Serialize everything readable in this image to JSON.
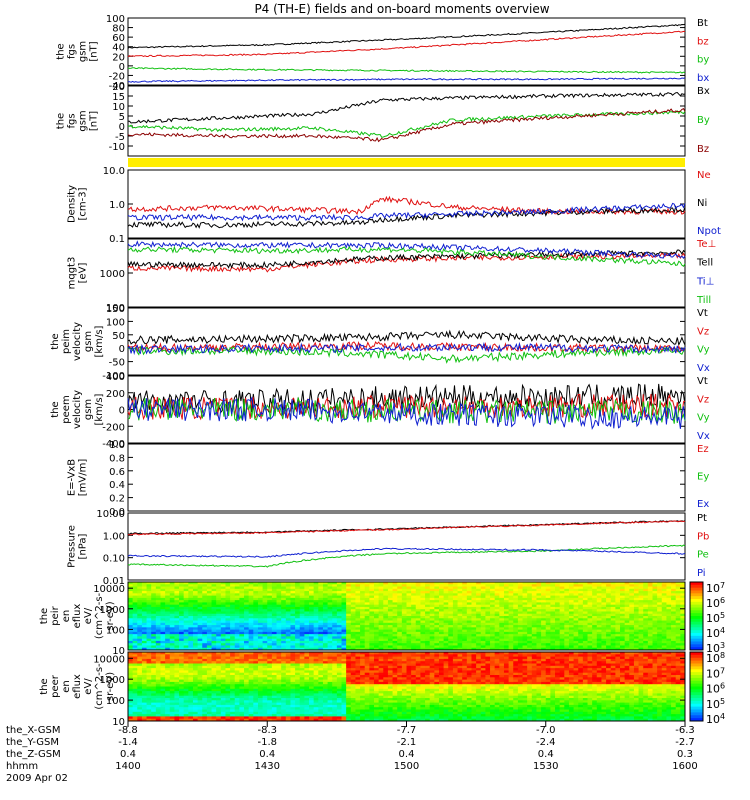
{
  "title": "P4 (TH-E) fields and on-board moments overview",
  "x_axis": {
    "row_labels": [
      "the_X-GSM",
      "the_Y-GSM",
      "the_Z-GSM",
      "hhmm",
      "2009 Apr 02"
    ],
    "ticks": [
      {
        "hhmm": "1400",
        "x": "-8.8",
        "y": "-1.4",
        "z": "0.4"
      },
      {
        "hhmm": "1430",
        "x": "-8.3",
        "y": "-1.8",
        "z": "0.4"
      },
      {
        "hhmm": "1500",
        "x": "-7.7",
        "y": "-2.1",
        "z": "0.4"
      },
      {
        "hhmm": "1530",
        "x": "-7.0",
        "y": "-2.4",
        "z": "0.4"
      },
      {
        "hhmm": "1600",
        "x": "-6.3",
        "y": "-2.7",
        "z": "0.3"
      }
    ]
  },
  "chart_data": [
    {
      "type": "line",
      "ylabel": [
        "the",
        "fgs",
        "gsm",
        "[nT]"
      ],
      "ylim": [
        -40,
        100
      ],
      "yticks": [
        "100",
        "80",
        "60",
        "40",
        "20",
        "0",
        "-20",
        "-40"
      ],
      "series": [
        {
          "name": "Bt",
          "color": "#000000",
          "x": [
            0,
            30,
            60,
            90,
            120
          ],
          "values": [
            38,
            44,
            56,
            70,
            86
          ]
        },
        {
          "name": "bz",
          "color": "#e01010",
          "x": [
            0,
            30,
            60,
            90,
            120
          ],
          "values": [
            20,
            24,
            38,
            55,
            72
          ]
        },
        {
          "name": "by",
          "color": "#10c010",
          "x": [
            0,
            30,
            60,
            90,
            120
          ],
          "values": [
            -5,
            -8,
            -10,
            -12,
            -14
          ]
        },
        {
          "name": "bx",
          "color": "#1020d0",
          "x": [
            0,
            30,
            60,
            90,
            120
          ],
          "values": [
            -33,
            -30,
            -28,
            -28,
            -26
          ]
        }
      ]
    },
    {
      "type": "line",
      "ylabel": [
        "the",
        "fgs",
        "gsm",
        "[nT]"
      ],
      "ylim": [
        -15,
        20
      ],
      "yticks": [
        "20",
        "15",
        "10",
        "5",
        "0",
        "-5",
        "-10"
      ],
      "series": [
        {
          "name": "Bx",
          "color": "#000000",
          "x": [
            0,
            20,
            40,
            55,
            70,
            90,
            120
          ],
          "values": [
            2,
            4,
            6,
            13,
            14,
            15,
            16
          ]
        },
        {
          "name": "By",
          "color": "#10c010",
          "x": [
            0,
            20,
            40,
            55,
            70,
            90,
            120
          ],
          "values": [
            0,
            -2,
            -1,
            -5,
            3,
            5,
            7
          ]
        },
        {
          "name": "Bz",
          "color": "#8b0000",
          "x": [
            0,
            20,
            40,
            55,
            70,
            90,
            120
          ],
          "values": [
            -4,
            -5,
            -5,
            -7,
            1,
            4,
            8
          ]
        }
      ]
    },
    {
      "type": "line",
      "ylabel": [
        "Density",
        "[cm-3]"
      ],
      "yscale": "log",
      "ylim": [
        0.1,
        10
      ],
      "yticks": [
        "10.0",
        "1.0",
        "0.1"
      ],
      "series": [
        {
          "name": "Ne",
          "color": "#e01010",
          "x": [
            0,
            20,
            50,
            55,
            70,
            90,
            120
          ],
          "values": [
            0.7,
            0.8,
            0.6,
            1.4,
            0.8,
            0.6,
            0.6
          ]
        },
        {
          "name": "Ni",
          "color": "#000000",
          "x": [
            0,
            20,
            50,
            55,
            70,
            90,
            120
          ],
          "values": [
            0.25,
            0.24,
            0.28,
            0.35,
            0.45,
            0.55,
            0.7
          ]
        },
        {
          "name": "Npot",
          "color": "#1020d0",
          "x": [
            0,
            20,
            50,
            55,
            70,
            90,
            120
          ],
          "values": [
            0.4,
            0.4,
            0.4,
            0.45,
            0.5,
            0.6,
            0.9
          ]
        }
      ]
    },
    {
      "type": "line",
      "ylabel": [
        "mqgt3",
        "[eV]"
      ],
      "yscale": "log",
      "ylim": [
        100,
        10000
      ],
      "yticks": [
        "1000",
        "100"
      ],
      "series": [
        {
          "name": "Te⊥",
          "color": "#e01010",
          "x": [
            0,
            30,
            55,
            90,
            120
          ],
          "values": [
            1400,
            1300,
            2500,
            3000,
            3200
          ]
        },
        {
          "name": "Tell",
          "color": "#000000",
          "x": [
            0,
            30,
            55,
            90,
            120
          ],
          "values": [
            1800,
            1700,
            2800,
            3500,
            4000
          ]
        },
        {
          "name": "Ti⊥",
          "color": "#1020d0",
          "x": [
            0,
            30,
            55,
            90,
            120
          ],
          "values": [
            7000,
            6500,
            6500,
            4500,
            3000
          ]
        },
        {
          "name": "Till",
          "color": "#10c010",
          "x": [
            0,
            30,
            55,
            90,
            120
          ],
          "values": [
            5000,
            4500,
            5000,
            3000,
            1800
          ]
        }
      ]
    },
    {
      "type": "line",
      "ylabel": [
        "the",
        "peim",
        "velocity",
        "gsm",
        "[km/s]"
      ],
      "ylim": [
        -100,
        150
      ],
      "yticks": [
        "150",
        "100",
        "50",
        "0",
        "-50",
        "-100"
      ],
      "series": [
        {
          "name": "Vt",
          "color": "#000000",
          "x": [
            0,
            30,
            50,
            70,
            100,
            120
          ],
          "values": [
            30,
            35,
            40,
            50,
            30,
            25
          ]
        },
        {
          "name": "Vz",
          "color": "#e01010",
          "x": [
            0,
            30,
            50,
            70,
            100,
            120
          ],
          "values": [
            0,
            5,
            10,
            5,
            0,
            0
          ]
        },
        {
          "name": "Vy",
          "color": "#10c010",
          "x": [
            0,
            30,
            50,
            70,
            100,
            120
          ],
          "values": [
            -10,
            -10,
            -20,
            -40,
            -15,
            -10
          ]
        },
        {
          "name": "Vx",
          "color": "#1020d0",
          "x": [
            0,
            30,
            50,
            70,
            100,
            120
          ],
          "values": [
            -5,
            0,
            0,
            5,
            0,
            -5
          ]
        }
      ]
    },
    {
      "type": "line",
      "ylabel": [
        "the",
        "peem",
        "velocity",
        "gsm",
        "[km/s]"
      ],
      "ylim": [
        -400,
        400
      ],
      "yticks": [
        "400",
        "200",
        "0",
        "-200",
        "-400"
      ],
      "series": [
        {
          "name": "Vt",
          "color": "#000000",
          "x": [
            0,
            30,
            60,
            90,
            120
          ],
          "values": [
            100,
            100,
            150,
            150,
            170
          ]
        },
        {
          "name": "Vz",
          "color": "#e01010",
          "x": [
            0,
            30,
            60,
            90,
            120
          ],
          "values": [
            20,
            20,
            40,
            40,
            50
          ]
        },
        {
          "name": "Vy",
          "color": "#10c010",
          "x": [
            0,
            30,
            60,
            90,
            120
          ],
          "values": [
            0,
            0,
            -20,
            -30,
            -30
          ]
        },
        {
          "name": "Vx",
          "color": "#1020d0",
          "x": [
            0,
            30,
            60,
            90,
            120
          ],
          "values": [
            0,
            0,
            -50,
            -80,
            -100
          ]
        }
      ]
    },
    {
      "type": "line",
      "ylabel": [
        "E=-VxB",
        "[mV/m]"
      ],
      "ylim": [
        0,
        1
      ],
      "yticks": [
        "1.0",
        "0.8",
        "0.6",
        "0.4",
        "0.2",
        "0.0"
      ],
      "series": [
        {
          "name": "Ez",
          "color": "#e01010",
          "x": [],
          "values": []
        },
        {
          "name": "Ey",
          "color": "#10c010",
          "x": [],
          "values": []
        },
        {
          "name": "Ex",
          "color": "#1020d0",
          "x": [],
          "values": []
        }
      ]
    },
    {
      "type": "line",
      "ylabel": [
        "Pressure",
        "[nPa]"
      ],
      "yscale": "log",
      "ylim": [
        0.01,
        10
      ],
      "yticks": [
        "10.00",
        "1.00",
        "0.10",
        "0.01"
      ],
      "series": [
        {
          "name": "Pt",
          "color": "#000000",
          "x": [
            0,
            30,
            60,
            90,
            120
          ],
          "values": [
            1.2,
            1.4,
            2.0,
            3.0,
            4.5
          ]
        },
        {
          "name": "Pb",
          "color": "#e01010",
          "x": [
            0,
            30,
            60,
            90,
            120
          ],
          "values": [
            1.1,
            1.3,
            1.9,
            2.9,
            4.3
          ]
        },
        {
          "name": "Pe",
          "color": "#10c010",
          "x": [
            0,
            30,
            55,
            90,
            120
          ],
          "values": [
            0.05,
            0.04,
            0.15,
            0.2,
            0.35
          ]
        },
        {
          "name": "Pi",
          "color": "#1020d0",
          "x": [
            0,
            30,
            55,
            90,
            120
          ],
          "values": [
            0.12,
            0.11,
            0.25,
            0.22,
            0.15
          ]
        }
      ]
    },
    {
      "type": "heatmap",
      "ylabel": [
        "the",
        "peir",
        "en",
        "eflux",
        "eV/",
        "(cm^2-s-",
        "sr-eV)"
      ],
      "yscale": "log",
      "ylim": [
        10,
        20000
      ],
      "yticks": [
        "10000",
        "1000",
        "100",
        "10"
      ],
      "colorbar_ticks": [
        "10^7",
        "10^6",
        "10^5",
        "10^4",
        "10^3"
      ]
    },
    {
      "type": "heatmap",
      "ylabel": [
        "the",
        "peer",
        "en",
        "eflux",
        "eV/",
        "(cm^2-s-",
        "sr-eV)"
      ],
      "yscale": "log",
      "ylim": [
        10,
        20000
      ],
      "yticks": [
        "10000",
        "1000",
        "100",
        "10"
      ],
      "colorbar_ticks": [
        "10^8",
        "10^7",
        "10^6",
        "10^5",
        "10^4"
      ]
    }
  ],
  "colors": {
    "ephemeris_bar": "#ffee00"
  }
}
